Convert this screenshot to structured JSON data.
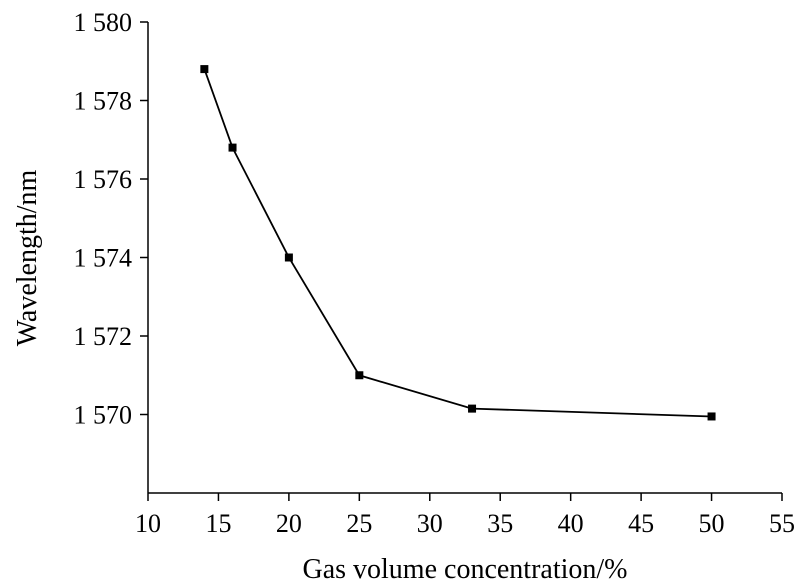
{
  "chart_data": {
    "type": "line",
    "title": "",
    "xlabel": "Gas volume concentration/%",
    "ylabel": "Wavelength/nm",
    "xlim": [
      10,
      55
    ],
    "ylim": [
      1568,
      1580
    ],
    "x_ticks": [
      10,
      15,
      20,
      25,
      30,
      35,
      40,
      45,
      50,
      55
    ],
    "x_tick_labels": [
      "10",
      "15",
      "20",
      "25",
      "30",
      "35",
      "40",
      "45",
      "50",
      "55"
    ],
    "y_ticks": [
      1570,
      1572,
      1574,
      1576,
      1578,
      1580
    ],
    "y_tick_labels": [
      "1 570",
      "1 572",
      "1 574",
      "1 576",
      "1 578",
      "1 580"
    ],
    "grid": false,
    "legend": "none",
    "series": [
      {
        "x": [
          14,
          16,
          20,
          25,
          33,
          50
        ],
        "y": [
          1578.8,
          1576.8,
          1574.0,
          1571.0,
          1570.15,
          1569.95
        ],
        "marker": "square",
        "color": "#000000"
      }
    ]
  }
}
